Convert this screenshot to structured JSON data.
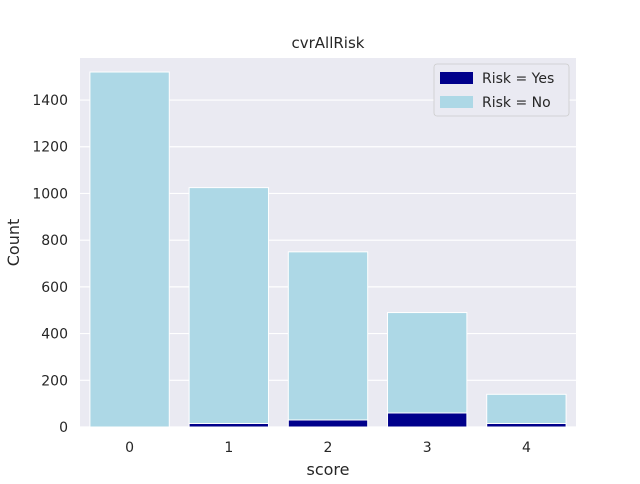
{
  "colors": {
    "background": "#eaeaf2",
    "grid": "#ffffff",
    "risk_yes": "#00008b",
    "risk_no": "#add8e6"
  },
  "chart_data": {
    "type": "bar",
    "stacked": false,
    "title": "cvrAllRisk",
    "xlabel": "score",
    "ylabel": "Count",
    "categories": [
      "0",
      "1",
      "2",
      "3",
      "4"
    ],
    "y_ticks": [
      0,
      200,
      400,
      600,
      800,
      1000,
      1200,
      1400
    ],
    "y_tick_labels": [
      "0",
      "200",
      "400",
      "600",
      "800",
      "1000",
      "1200",
      "1400"
    ],
    "ylim": [
      0,
      1580
    ],
    "grid": true,
    "legend_position": "top-right",
    "series": [
      {
        "name": "Risk = Yes",
        "color": "#00008b",
        "values": [
          0,
          15,
          30,
          60,
          15
        ]
      },
      {
        "name": "Risk = No",
        "color": "#add8e6",
        "values": [
          1520,
          1025,
          750,
          490,
          140
        ]
      }
    ]
  }
}
